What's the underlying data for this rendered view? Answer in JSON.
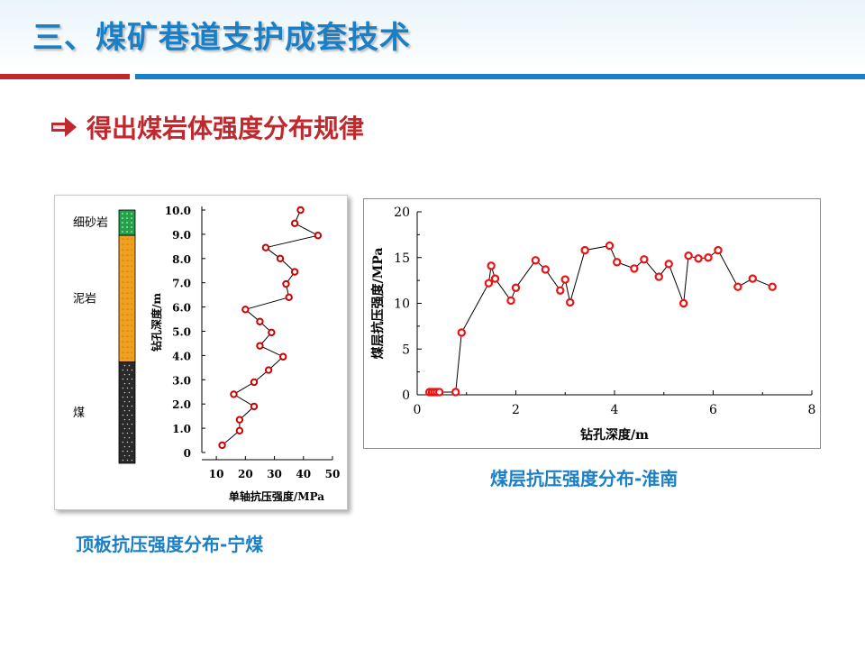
{
  "slide": {
    "title": "三、煤矿巷道支护成套技术",
    "subtitle": "得出煤岩体强度分布规律",
    "colors": {
      "title": "#1a7fc4",
      "subtitle": "#c0282d",
      "bar_red": "#c0282d",
      "bar_blue": "#1a7fc4"
    },
    "bullet_icon": "right-arrow-icon"
  },
  "captions": {
    "left": "顶板抗压强度分布-宁煤",
    "right": "煤层抗压强度分布-淮南"
  },
  "chart_data": [
    {
      "type": "line",
      "orientation": "vertical-profile",
      "strata": [
        {
          "name": "细砂岩",
          "from_depth": 9.0,
          "to_depth": 10.0,
          "color": "#22a04a"
        },
        {
          "name": "泥岩",
          "from_depth": 4.0,
          "to_depth": 9.0,
          "color": "#f0a020"
        },
        {
          "name": "煤",
          "from_depth": 0.0,
          "to_depth": 4.0,
          "color": "#2a2a2a"
        }
      ],
      "ylabel": "钻孔深度/m",
      "xlabel": "单轴抗压强度/MPa",
      "ylim": [
        0,
        10
      ],
      "xlim": [
        5,
        50
      ],
      "yticks": [
        "0",
        "1.0",
        "2.0",
        "3.0",
        "4.0",
        "5.0",
        "6.0",
        "7.0",
        "8.0",
        "9.0",
        "10.0"
      ],
      "xticks": [
        "10",
        "20",
        "30",
        "40",
        "50"
      ],
      "line_color": "#000000",
      "marker_color": "#cc0000",
      "points": [
        {
          "x": 39,
          "y": 10.0
        },
        {
          "x": 37,
          "y": 9.45
        },
        {
          "x": 45,
          "y": 8.95
        },
        {
          "x": 27,
          "y": 8.45
        },
        {
          "x": 32,
          "y": 8.0
        },
        {
          "x": 37,
          "y": 7.45
        },
        {
          "x": 34,
          "y": 6.95
        },
        {
          "x": 35,
          "y": 6.4
        },
        {
          "x": 20,
          "y": 5.9
        },
        {
          "x": 25,
          "y": 5.4
        },
        {
          "x": 29,
          "y": 4.95
        },
        {
          "x": 25,
          "y": 4.4
        },
        {
          "x": 33,
          "y": 3.95
        },
        {
          "x": 28,
          "y": 3.4
        },
        {
          "x": 23,
          "y": 2.9
        },
        {
          "x": 16,
          "y": 2.4
        },
        {
          "x": 23,
          "y": 1.9
        },
        {
          "x": 18,
          "y": 1.35
        },
        {
          "x": 18,
          "y": 0.9
        },
        {
          "x": 12,
          "y": 0.3
        }
      ]
    },
    {
      "type": "line",
      "xlabel": "钻孔深度/m",
      "ylabel": "煤层抗压强度/MPa",
      "xlim": [
        0,
        8
      ],
      "ylim": [
        0,
        20
      ],
      "xticks": [
        "0",
        "2",
        "4",
        "6",
        "8"
      ],
      "yticks": [
        "0",
        "5",
        "10",
        "15",
        "20"
      ],
      "line_color": "#000000",
      "marker_color": "#ee1111",
      "points": [
        {
          "x": 0.25,
          "y": 0.3
        },
        {
          "x": 0.3,
          "y": 0.3
        },
        {
          "x": 0.35,
          "y": 0.3
        },
        {
          "x": 0.4,
          "y": 0.3
        },
        {
          "x": 0.45,
          "y": 0.3
        },
        {
          "x": 0.78,
          "y": 0.3
        },
        {
          "x": 0.9,
          "y": 6.8
        },
        {
          "x": 1.45,
          "y": 12.2
        },
        {
          "x": 1.5,
          "y": 14.1
        },
        {
          "x": 1.58,
          "y": 12.7
        },
        {
          "x": 1.9,
          "y": 10.3
        },
        {
          "x": 2.0,
          "y": 11.7
        },
        {
          "x": 2.4,
          "y": 14.7
        },
        {
          "x": 2.6,
          "y": 13.7
        },
        {
          "x": 2.9,
          "y": 11.4
        },
        {
          "x": 3.0,
          "y": 12.6
        },
        {
          "x": 3.1,
          "y": 10.1
        },
        {
          "x": 3.4,
          "y": 15.8
        },
        {
          "x": 3.9,
          "y": 16.3
        },
        {
          "x": 4.05,
          "y": 14.5
        },
        {
          "x": 4.4,
          "y": 13.8
        },
        {
          "x": 4.6,
          "y": 14.8
        },
        {
          "x": 4.9,
          "y": 12.9
        },
        {
          "x": 5.1,
          "y": 14.3
        },
        {
          "x": 5.4,
          "y": 10.0
        },
        {
          "x": 5.5,
          "y": 15.2
        },
        {
          "x": 5.7,
          "y": 14.9
        },
        {
          "x": 5.9,
          "y": 15.0
        },
        {
          "x": 6.1,
          "y": 15.8
        },
        {
          "x": 6.5,
          "y": 11.8
        },
        {
          "x": 6.8,
          "y": 12.7
        },
        {
          "x": 7.2,
          "y": 11.8
        }
      ]
    }
  ]
}
